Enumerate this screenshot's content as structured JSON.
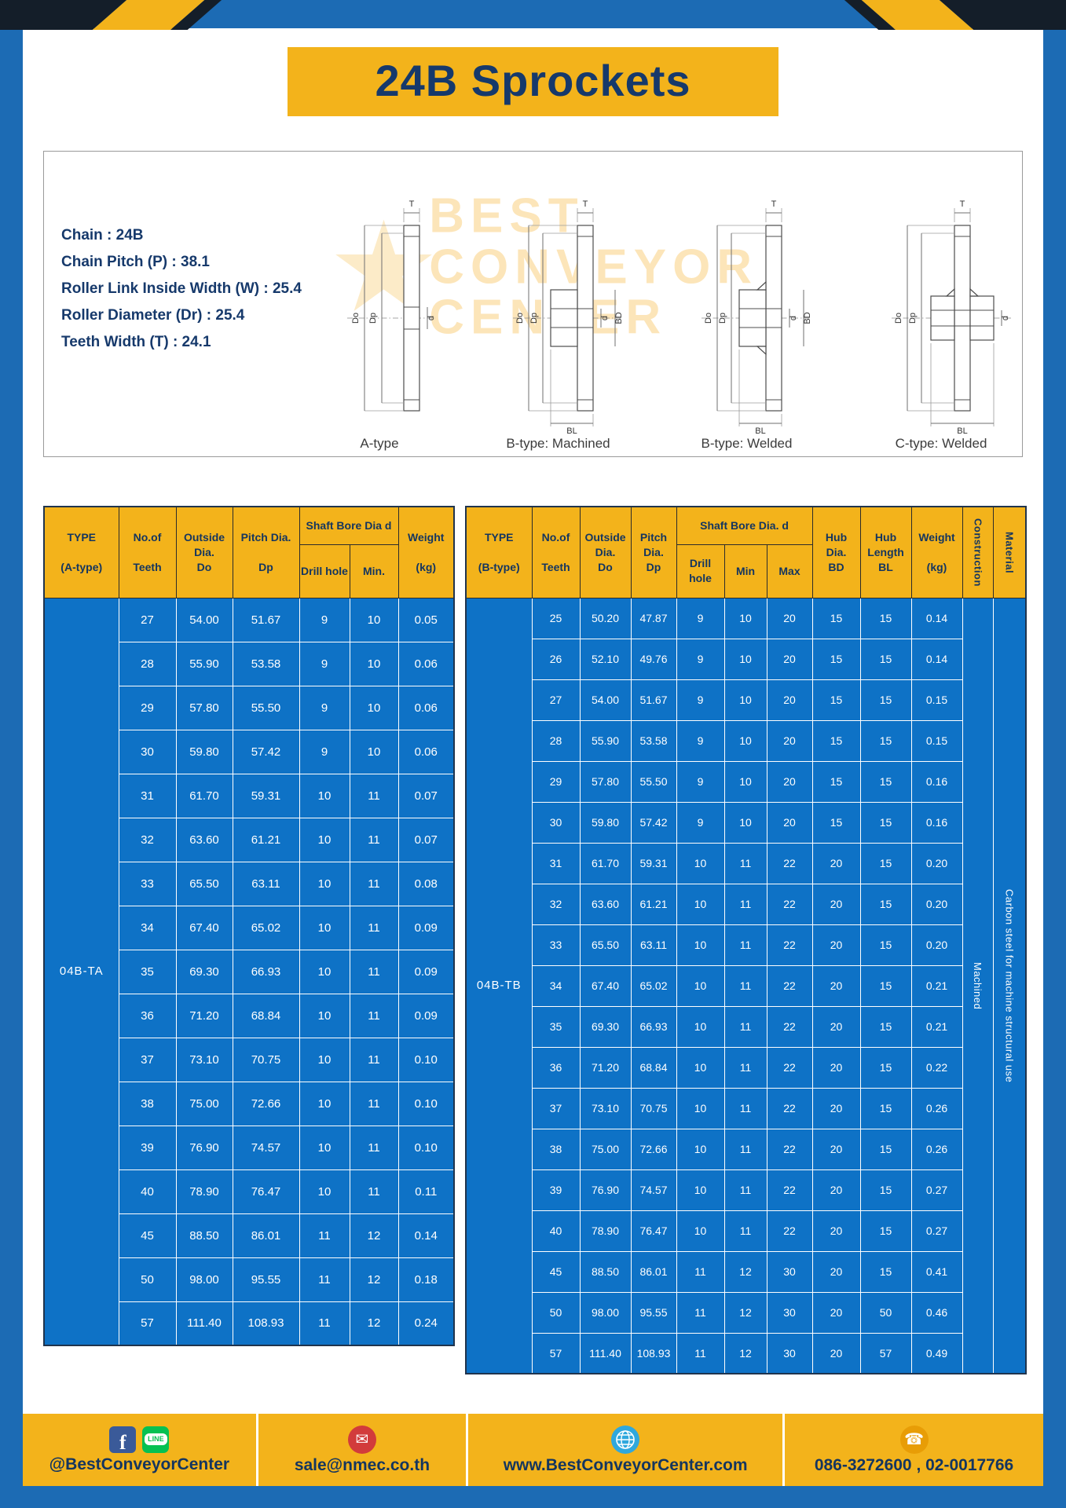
{
  "page": {
    "title": "24B Sprockets"
  },
  "specs": {
    "lines": [
      "Chain  :  24B",
      "Chain Pitch (P)  :  38.1",
      "Roller Link Inside Width (W)  :  25.4",
      "Roller Diameter (Dr)  :  25.4",
      "Teeth Width (T)  :  24.1"
    ]
  },
  "diagrams": {
    "watermark": "BEST\nCONVEYOR\nCENTER",
    "watermark_star": "★",
    "labels": [
      "A-type",
      "B-type: Machined",
      "B-type: Welded",
      "C-type: Welded"
    ],
    "dim_labels": {
      "t": "T",
      "do": "Do",
      "dp": "Dp",
      "d": "d",
      "bd": "BD",
      "bl": "BL"
    }
  },
  "table_a": {
    "type_label": "04B-TA",
    "headers": {
      "type": "TYPE\n\n(A-type)",
      "teeth": "No.of\n\nTeeth",
      "outside": "Outside\nDia.\nDo",
      "pitch": "Pitch Dia.\n\nDp",
      "shaft_group": "Shaft Bore Dia d",
      "drill": "Drill hole",
      "min": "Min.",
      "weight": "Weight\n\n(kg)"
    },
    "rows": [
      [
        "27",
        "54.00",
        "51.67",
        "9",
        "10",
        "0.05"
      ],
      [
        "28",
        "55.90",
        "53.58",
        "9",
        "10",
        "0.06"
      ],
      [
        "29",
        "57.80",
        "55.50",
        "9",
        "10",
        "0.06"
      ],
      [
        "30",
        "59.80",
        "57.42",
        "9",
        "10",
        "0.06"
      ],
      [
        "31",
        "61.70",
        "59.31",
        "10",
        "11",
        "0.07"
      ],
      [
        "32",
        "63.60",
        "61.21",
        "10",
        "11",
        "0.07"
      ],
      [
        "33",
        "65.50",
        "63.11",
        "10",
        "11",
        "0.08"
      ],
      [
        "34",
        "67.40",
        "65.02",
        "10",
        "11",
        "0.09"
      ],
      [
        "35",
        "69.30",
        "66.93",
        "10",
        "11",
        "0.09"
      ],
      [
        "36",
        "71.20",
        "68.84",
        "10",
        "11",
        "0.09"
      ],
      [
        "37",
        "73.10",
        "70.75",
        "10",
        "11",
        "0.10"
      ],
      [
        "38",
        "75.00",
        "72.66",
        "10",
        "11",
        "0.10"
      ],
      [
        "39",
        "76.90",
        "74.57",
        "10",
        "11",
        "0.10"
      ],
      [
        "40",
        "78.90",
        "76.47",
        "10",
        "11",
        "0.11"
      ],
      [
        "45",
        "88.50",
        "86.01",
        "11",
        "12",
        "0.14"
      ],
      [
        "50",
        "98.00",
        "95.55",
        "11",
        "12",
        "0.18"
      ],
      [
        "57",
        "111.40",
        "108.93",
        "11",
        "12",
        "0.24"
      ]
    ]
  },
  "table_b": {
    "type_label": "04B-TB",
    "construction_value": "Machined",
    "material_value": "Carbon steel for machine structural use",
    "headers": {
      "type": "TYPE\n\n(B-type)",
      "teeth": "No.of\n\nTeeth",
      "outside": "Outside\nDia.\nDo",
      "pitch": "Pitch\nDia.\nDp",
      "shaft_group": "Shaft Bore Dia.  d",
      "drill": "Drill hole",
      "min": "Min",
      "max": "Max",
      "hub_dia": "Hub\nDia.\nBD",
      "hub_len": "Hub\nLength\nBL",
      "weight": "Weight\n\n(kg)",
      "construction": "Construction",
      "material": "Material"
    },
    "rows": [
      [
        "25",
        "50.20",
        "47.87",
        "9",
        "10",
        "20",
        "15",
        "15",
        "0.14"
      ],
      [
        "26",
        "52.10",
        "49.76",
        "9",
        "10",
        "20",
        "15",
        "15",
        "0.14"
      ],
      [
        "27",
        "54.00",
        "51.67",
        "9",
        "10",
        "20",
        "15",
        "15",
        "0.15"
      ],
      [
        "28",
        "55.90",
        "53.58",
        "9",
        "10",
        "20",
        "15",
        "15",
        "0.15"
      ],
      [
        "29",
        "57.80",
        "55.50",
        "9",
        "10",
        "20",
        "15",
        "15",
        "0.16"
      ],
      [
        "30",
        "59.80",
        "57.42",
        "9",
        "10",
        "20",
        "15",
        "15",
        "0.16"
      ],
      [
        "31",
        "61.70",
        "59.31",
        "10",
        "11",
        "22",
        "20",
        "15",
        "0.20"
      ],
      [
        "32",
        "63.60",
        "61.21",
        "10",
        "11",
        "22",
        "20",
        "15",
        "0.20"
      ],
      [
        "33",
        "65.50",
        "63.11",
        "10",
        "11",
        "22",
        "20",
        "15",
        "0.20"
      ],
      [
        "34",
        "67.40",
        "65.02",
        "10",
        "11",
        "22",
        "20",
        "15",
        "0.21"
      ],
      [
        "35",
        "69.30",
        "66.93",
        "10",
        "11",
        "22",
        "20",
        "15",
        "0.21"
      ],
      [
        "36",
        "71.20",
        "68.84",
        "10",
        "11",
        "22",
        "20",
        "15",
        "0.22"
      ],
      [
        "37",
        "73.10",
        "70.75",
        "10",
        "11",
        "22",
        "20",
        "15",
        "0.26"
      ],
      [
        "38",
        "75.00",
        "72.66",
        "10",
        "11",
        "22",
        "20",
        "15",
        "0.26"
      ],
      [
        "39",
        "76.90",
        "74.57",
        "10",
        "11",
        "22",
        "20",
        "15",
        "0.27"
      ],
      [
        "40",
        "78.90",
        "76.47",
        "10",
        "11",
        "22",
        "20",
        "15",
        "0.27"
      ],
      [
        "45",
        "88.50",
        "86.01",
        "11",
        "12",
        "30",
        "20",
        "15",
        "0.41"
      ],
      [
        "50",
        "98.00",
        "95.55",
        "11",
        "12",
        "30",
        "20",
        "50",
        "0.46"
      ],
      [
        "57",
        "111.40",
        "108.93",
        "11",
        "12",
        "30",
        "20",
        "57",
        "0.49"
      ]
    ]
  },
  "footer": {
    "items": [
      {
        "label": "@BestConveyorCenter"
      },
      {
        "label": "sale@nmec.co.th"
      },
      {
        "label": "www.BestConveyorCenter.com"
      },
      {
        "label": "086-3272600 , 02-0017766"
      }
    ],
    "icons": {
      "facebook": "f",
      "line": "LINE",
      "email": "✉",
      "phone": "☎"
    }
  },
  "colors": {
    "page_blue": "#1c6bb4",
    "cell_blue": "#0e72c6",
    "yellow": "#f3b31b",
    "navy": "#16396b"
  }
}
